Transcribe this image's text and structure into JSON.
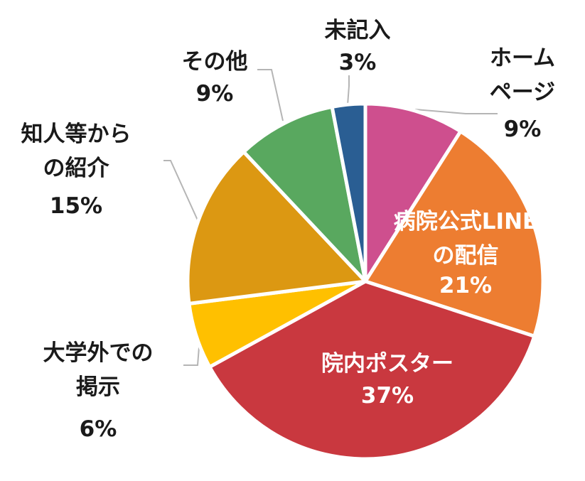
{
  "chart_data": {
    "type": "pie",
    "start_angle_deg": 0,
    "direction": "clockwise",
    "slices": [
      {
        "label": "ホームページ",
        "value": 9,
        "value_label": "9%",
        "color": "#CE4F8E",
        "label_lines": [
          "ホーム",
          "ページ"
        ],
        "inside": false
      },
      {
        "label": "病院公式LINEの配信",
        "value": 21,
        "value_label": "21%",
        "color": "#ED7D31",
        "label_lines": [
          "病院公式LINE",
          "の配信"
        ],
        "inside": true
      },
      {
        "label": "院内ポスター",
        "value": 37,
        "value_label": "37%",
        "color": "#C9383F",
        "label_lines": [
          "院内ポスター"
        ],
        "inside": true
      },
      {
        "label": "大学外での掲示",
        "value": 6,
        "value_label": "6%",
        "color": "#FFC000",
        "label_lines": [
          "大学外での",
          "掲示"
        ],
        "inside": false
      },
      {
        "label": "知人等からの紹介",
        "value": 15,
        "value_label": "15%",
        "color": "#DC9812",
        "label_lines": [
          "知人等から",
          "の紹介"
        ],
        "inside": false
      },
      {
        "label": "その他",
        "value": 9,
        "value_label": "9%",
        "color": "#59A85F",
        "label_lines": [
          "その他"
        ],
        "inside": false
      },
      {
        "label": "未記入",
        "value": 3,
        "value_label": "3%",
        "color": "#2A5E93",
        "label_lines": [
          "未記入"
        ],
        "inside": false
      }
    ],
    "legend": "none"
  }
}
